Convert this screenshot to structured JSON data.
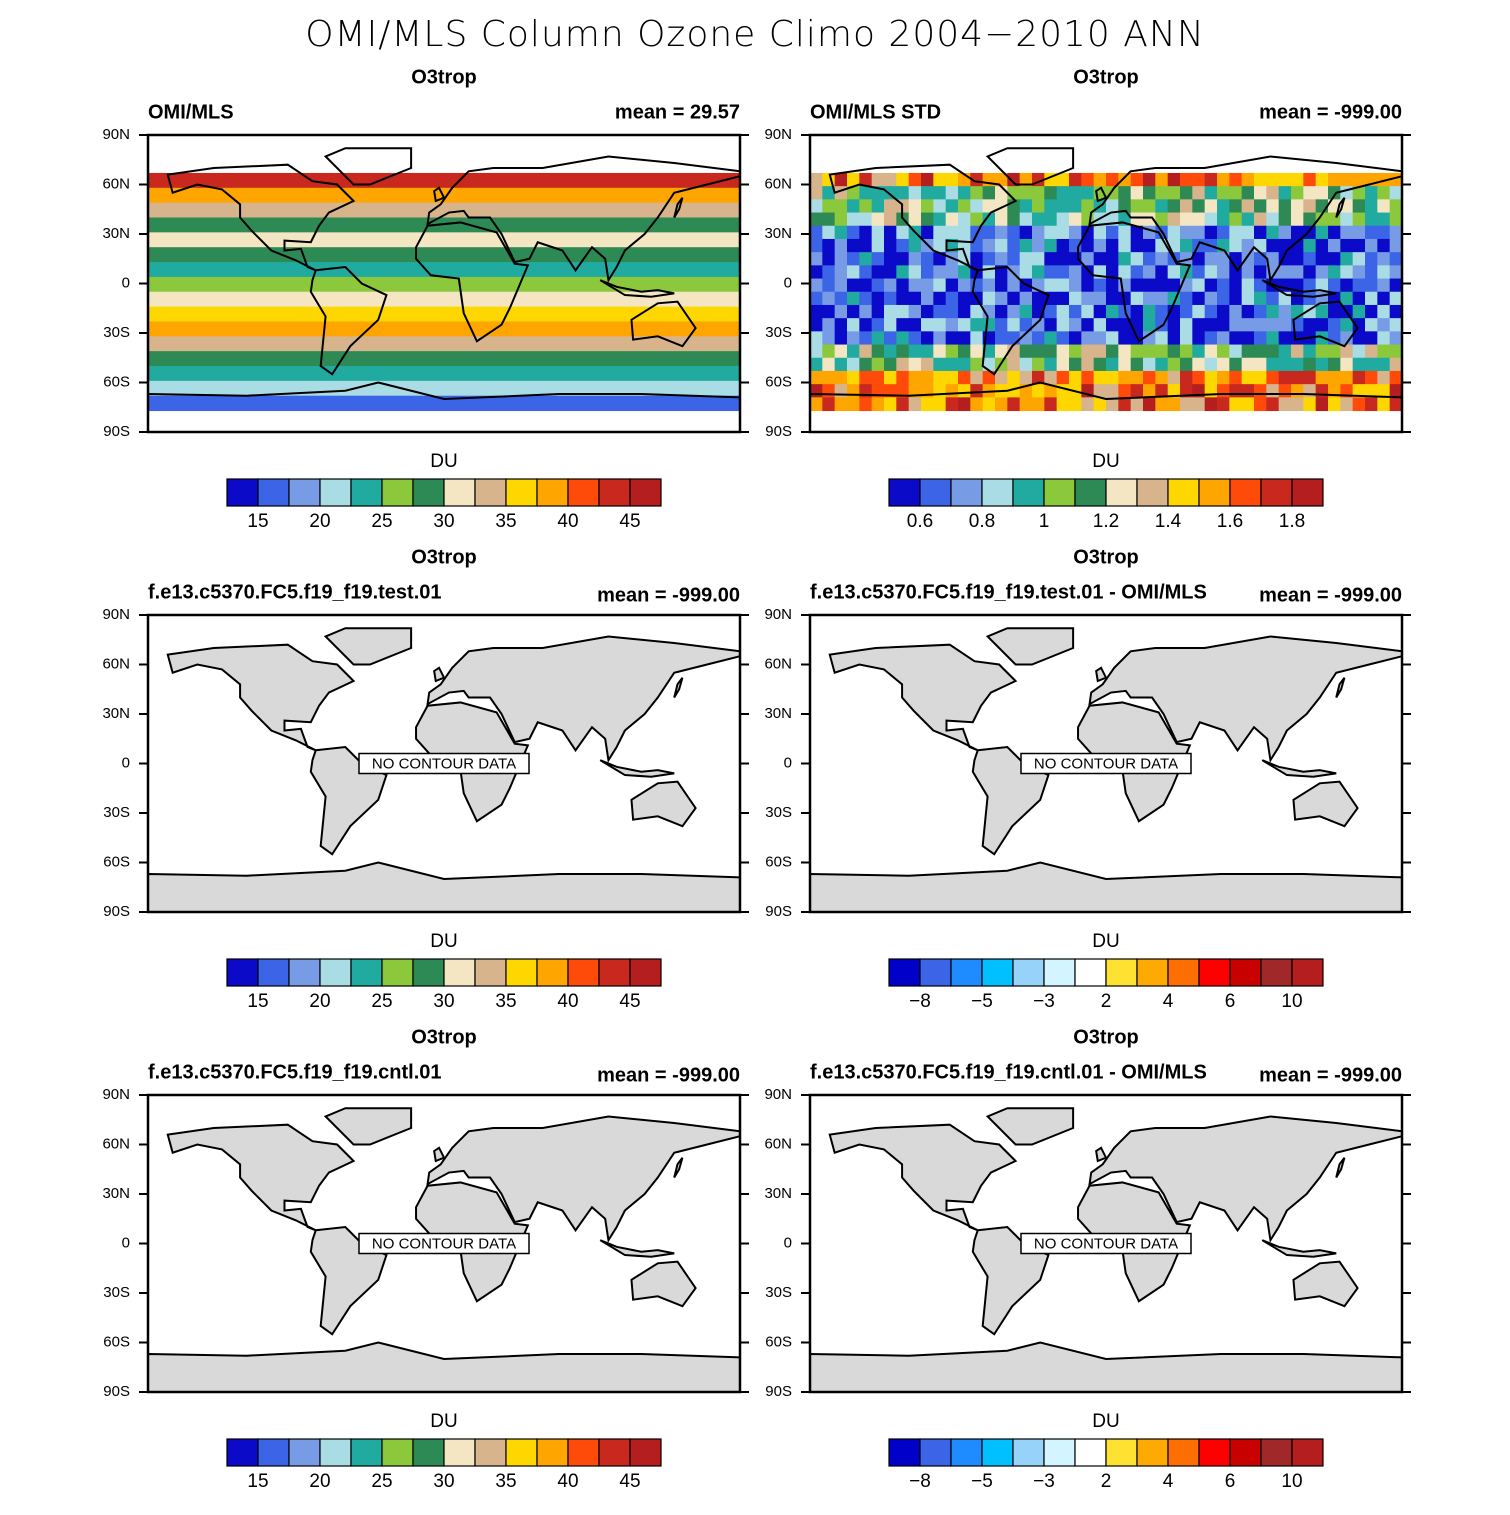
{
  "title": "OMI/MLS Column Ozone Climo 2004−2010 ANN",
  "lat_labels": [
    "90N",
    "60N",
    "30N",
    "0",
    "30S",
    "60S",
    "90S"
  ],
  "panels": [
    {
      "title": "O3trop",
      "left_label": "OMI/MLS",
      "right_label": "mean =  29.57",
      "colorbar": {
        "label": "DU",
        "colors": [
          "#0a0ac8",
          "#3c64e6",
          "#789be6",
          "#aadce6",
          "#20aaa0",
          "#8cc83c",
          "#2d8a55",
          "#f5e6c3",
          "#d7b48c",
          "#ffd700",
          "#ffa500",
          "#ff4b0a",
          "#c8281e",
          "#b41e1e"
        ],
        "tick_labels": [
          "15",
          "20",
          "25",
          "30",
          "35",
          "40",
          "45"
        ]
      }
    },
    {
      "title": "O3trop",
      "left_label": "OMI/MLS STD",
      "right_label": "mean = -999.00",
      "colorbar": {
        "label": "DU",
        "colors": [
          "#0a0ac8",
          "#3c64e6",
          "#789be6",
          "#aadce6",
          "#20aaa0",
          "#8cc83c",
          "#2d8a55",
          "#f5e6c3",
          "#d7b48c",
          "#ffd700",
          "#ffa500",
          "#ff4b0a",
          "#c8281e",
          "#b41e1e"
        ],
        "tick_labels": [
          "0.6",
          "0.8",
          "1",
          "1.2",
          "1.4",
          "1.6",
          "1.8"
        ]
      }
    },
    {
      "title": "O3trop",
      "left_label": "f.e13.c5370.FC5.f19_f19.test.01",
      "right_label": "mean = -999.00",
      "no_data": "NO CONTOUR DATA",
      "colorbar": {
        "label": "DU",
        "colors": [
          "#0a0ac8",
          "#3c64e6",
          "#789be6",
          "#aadce6",
          "#20aaa0",
          "#8cc83c",
          "#2d8a55",
          "#f5e6c3",
          "#d7b48c",
          "#ffd700",
          "#ffa500",
          "#ff4b0a",
          "#c8281e",
          "#b41e1e"
        ],
        "tick_labels": [
          "15",
          "20",
          "25",
          "30",
          "35",
          "40",
          "45"
        ]
      }
    },
    {
      "title": "O3trop",
      "left_label": "f.e13.c5370.FC5.f19_f19.test.01 - OMI/MLS",
      "right_label": "mean = -999.00",
      "no_data": "NO CONTOUR DATA",
      "colorbar": {
        "label": "DU",
        "colors": [
          "#0000c8",
          "#3c64e6",
          "#1e8cff",
          "#00c0ff",
          "#96d2fa",
          "#d2f5ff",
          "#ffffff",
          "#ffe132",
          "#ffaa00",
          "#ff6e00",
          "#ff0000",
          "#c80000",
          "#a02828",
          "#b41e1e"
        ],
        "tick_labels": [
          "−8",
          "−5",
          "−3",
          "2",
          "4",
          "6",
          "10"
        ]
      }
    },
    {
      "title": "O3trop",
      "left_label": "f.e13.c5370.FC5.f19_f19.cntl.01",
      "right_label": "mean = -999.00",
      "no_data": "NO CONTOUR DATA",
      "colorbar": {
        "label": "DU",
        "colors": [
          "#0a0ac8",
          "#3c64e6",
          "#789be6",
          "#aadce6",
          "#20aaa0",
          "#8cc83c",
          "#2d8a55",
          "#f5e6c3",
          "#d7b48c",
          "#ffd700",
          "#ffa500",
          "#ff4b0a",
          "#c8281e",
          "#b41e1e"
        ],
        "tick_labels": [
          "15",
          "20",
          "25",
          "30",
          "35",
          "40",
          "45"
        ]
      }
    },
    {
      "title": "O3trop",
      "left_label": "f.e13.c5370.FC5.f19_f19.cntl.01 - OMI/MLS",
      "right_label": "mean = -999.00",
      "no_data": "NO CONTOUR DATA",
      "colorbar": {
        "label": "DU",
        "colors": [
          "#0000c8",
          "#3c64e6",
          "#1e8cff",
          "#00c0ff",
          "#96d2fa",
          "#d2f5ff",
          "#ffffff",
          "#ffe132",
          "#ffaa00",
          "#ff6e00",
          "#ff0000",
          "#c80000",
          "#a02828",
          "#b41e1e"
        ],
        "tick_labels": [
          "−8",
          "−5",
          "−3",
          "2",
          "4",
          "6",
          "10"
        ]
      }
    }
  ]
}
